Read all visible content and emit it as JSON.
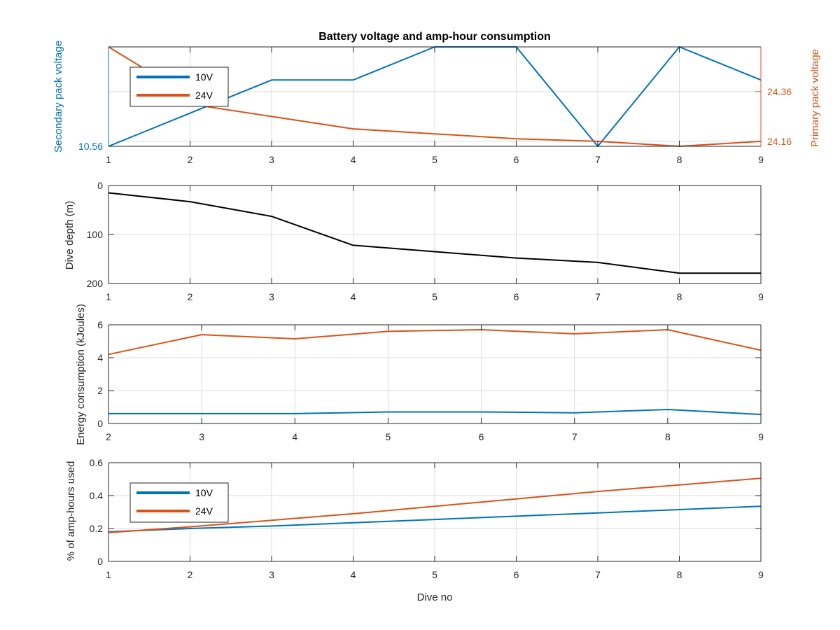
{
  "chart_data": [
    {
      "type": "line",
      "title": "Battery voltage and amp-hour consumption",
      "xlabel": "",
      "ylabel_left": "Secondary pack voltage",
      "ylabel_right": "Primary pack voltage",
      "x": [
        1,
        2,
        3,
        4,
        5,
        6,
        7,
        8,
        9
      ],
      "xlim": [
        1,
        9
      ],
      "xticks": [
        1,
        2,
        3,
        4,
        5,
        6,
        7,
        8,
        9
      ],
      "left_axis": {
        "ylim": [
          10.56,
          10.62
        ],
        "ytick_labels": [
          "10.56"
        ],
        "yticks": [
          10.56
        ],
        "color": "#0072BD"
      },
      "right_axis": {
        "ylim": [
          24.14,
          24.54
        ],
        "ytick_labels": [
          "24.16",
          "24.36"
        ],
        "yticks": [
          24.16,
          24.36
        ],
        "color": "#D95319"
      },
      "series": [
        {
          "name": "10V",
          "axis": "left",
          "color": "#0072BD",
          "x": [
            1,
            3,
            4,
            5,
            6,
            7,
            8,
            9
          ],
          "values": [
            10.56,
            10.6,
            10.6,
            10.62,
            10.62,
            10.56,
            10.62,
            10.6
          ]
        },
        {
          "name": "24V",
          "axis": "right",
          "color": "#D95319",
          "x": [
            1,
            2.2,
            3,
            4,
            5,
            6,
            7,
            8,
            9
          ],
          "values": [
            24.54,
            24.3,
            24.26,
            24.21,
            24.19,
            24.17,
            24.16,
            24.14,
            24.16
          ]
        }
      ],
      "legend": {
        "entries": [
          "10V",
          "24V"
        ],
        "position": "top-left"
      },
      "grid": true
    },
    {
      "type": "line",
      "title": "",
      "xlabel": "",
      "ylabel": "Dive depth (m)",
      "x": [
        1,
        2,
        3,
        4,
        5,
        6,
        7,
        8,
        9
      ],
      "xlim": [
        1,
        9
      ],
      "xticks": [
        1,
        2,
        3,
        4,
        5,
        6,
        7,
        8,
        9
      ],
      "ylim": [
        0,
        200
      ],
      "y_reversed": true,
      "yticks": [
        0,
        100,
        200
      ],
      "series": [
        {
          "name": "",
          "color": "#000000",
          "values": [
            15,
            33,
            63,
            122,
            135,
            148,
            157,
            179,
            179
          ]
        }
      ],
      "grid": true
    },
    {
      "type": "line",
      "title": "",
      "xlabel": "",
      "ylabel": "Energy consumption (kJoules)",
      "x": [
        2,
        3,
        4,
        5,
        6,
        7,
        8,
        9
      ],
      "xlim": [
        2,
        9
      ],
      "xticks": [
        2,
        3,
        4,
        5,
        6,
        7,
        8,
        9
      ],
      "ylim": [
        0,
        6
      ],
      "yticks": [
        0,
        2,
        4,
        6
      ],
      "series": [
        {
          "name": "",
          "color": "#D95319",
          "x": [
            2,
            3,
            4,
            5,
            6,
            7,
            8,
            9
          ],
          "values": [
            4.2,
            5.4,
            5.15,
            5.6,
            5.7,
            5.45,
            5.7,
            4.45
          ]
        },
        {
          "name": "",
          "color": "#0072BD",
          "x": [
            2,
            3,
            4,
            5,
            6,
            7,
            8,
            9
          ],
          "values": [
            0.6,
            0.6,
            0.6,
            0.7,
            0.7,
            0.65,
            0.85,
            0.55
          ]
        }
      ],
      "grid": true
    },
    {
      "type": "line",
      "title": "",
      "xlabel": "Dive no",
      "ylabel": "% of amp-hours used",
      "x": [
        1,
        2,
        3,
        4,
        5,
        6,
        7,
        8,
        9
      ],
      "xlim": [
        1,
        9
      ],
      "xticks": [
        1,
        2,
        3,
        4,
        5,
        6,
        7,
        8,
        9
      ],
      "ylim": [
        0,
        0.6
      ],
      "yticks": [
        0,
        0.2,
        0.4,
        0.6
      ],
      "ytick_labels": [
        "0",
        "0.2",
        "0.4",
        "0.6"
      ],
      "series": [
        {
          "name": "10V",
          "color": "#0072BD",
          "values": [
            0.18,
            0.2,
            0.215,
            0.235,
            0.255,
            0.275,
            0.295,
            0.315,
            0.335
          ]
        },
        {
          "name": "24V",
          "color": "#D95319",
          "values": [
            0.175,
            0.21,
            0.25,
            0.29,
            0.335,
            0.38,
            0.425,
            0.465,
            0.505
          ]
        }
      ],
      "legend": {
        "entries": [
          "10V",
          "24V"
        ],
        "position": "top-left"
      },
      "grid": true
    }
  ]
}
